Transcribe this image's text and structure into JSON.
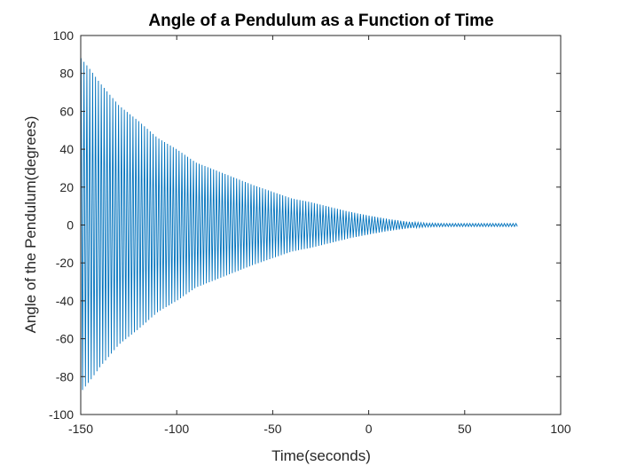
{
  "chart_data": {
    "type": "line",
    "title": "Angle of a Pendulum as a Function of Time",
    "xlabel": "Time(seconds)",
    "ylabel": "Angle of the Pendulum(degrees)",
    "xlim": [
      -150,
      100
    ],
    "ylim": [
      -100,
      100
    ],
    "xticks": [
      -150,
      -100,
      -50,
      0,
      50,
      100
    ],
    "yticks": [
      -100,
      -80,
      -60,
      -40,
      -20,
      0,
      20,
      40,
      60,
      80,
      100
    ],
    "xtick_labels": [
      "-150",
      "-100",
      "-50",
      "0",
      "50",
      "100"
    ],
    "ytick_labels": [
      "-100",
      "-80",
      "-60",
      "-40",
      "-20",
      "0",
      "20",
      "40",
      "60",
      "80",
      "100"
    ],
    "grid": false,
    "line_color": "#0072BD",
    "series": [
      {
        "x_start": -149.8,
        "x_end": 77.5,
        "period": 1.5,
        "envelope": {
          "x": [
            -149.8,
            -145,
            -140,
            -130,
            -120,
            -110,
            -100,
            -90,
            -80,
            -70,
            -60,
            -50,
            -40,
            -30,
            -20,
            -10,
            0,
            10,
            20,
            30,
            40,
            50,
            60,
            70,
            77.5
          ],
          "y": [
            88,
            82,
            75,
            63,
            55,
            46,
            40,
            33,
            29,
            25,
            21,
            17.5,
            14,
            12,
            9.5,
            7,
            5,
            3.2,
            1.8,
            1,
            0.8,
            0.8,
            0.8,
            0.8,
            0.8
          ]
        }
      }
    ]
  }
}
